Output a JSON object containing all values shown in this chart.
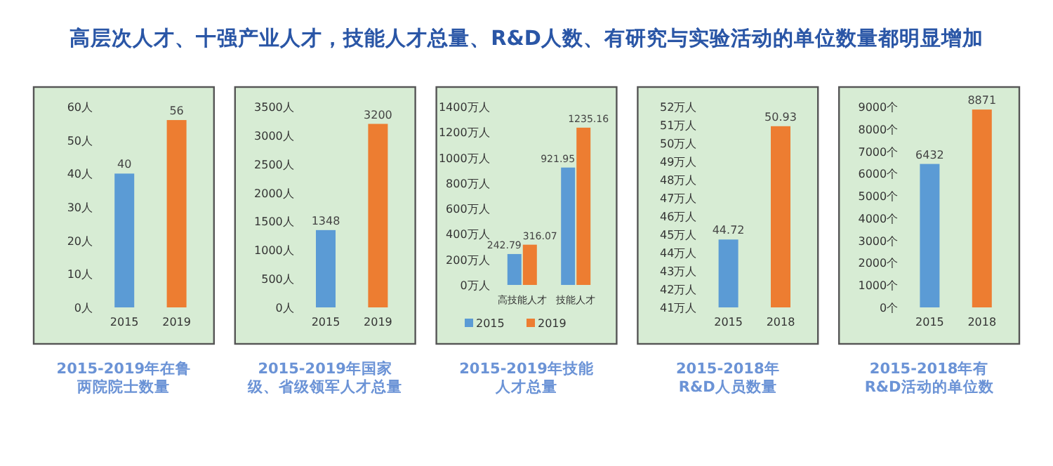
{
  "chart_data": [
    {
      "type": "bar",
      "title": "高层次人才、十强产业人才，技能人才总量、R&D人数、有研究与实验活动的单位数量都明显增加",
      "xlabel": "2015-2019年在鲁两院院士数量",
      "categories": [
        "2015",
        "2019"
      ],
      "values": [
        40,
        56
      ],
      "colors": [
        "#5b9bd5",
        "#ed7d31"
      ],
      "ylim": [
        0,
        60
      ],
      "yticks": [
        {
          "value": 0,
          "label": "0人"
        },
        {
          "value": 10,
          "label": "10人"
        },
        {
          "value": 20,
          "label": "20人"
        },
        {
          "value": 30,
          "label": "30人"
        },
        {
          "value": 40,
          "label": "40人"
        },
        {
          "value": 50,
          "label": "50人"
        },
        {
          "value": 60,
          "label": "60人"
        }
      ],
      "data_labels": true
    },
    {
      "type": "bar",
      "xlabel": "2015-2019年国家级、省级领军人才总量",
      "categories": [
        "2015",
        "2019"
      ],
      "values": [
        1348,
        3200
      ],
      "colors": [
        "#5b9bd5",
        "#ed7d31"
      ],
      "ylim": [
        0,
        3500
      ],
      "yticks": [
        {
          "value": 0,
          "label": "0人"
        },
        {
          "value": 500,
          "label": "500人"
        },
        {
          "value": 1000,
          "label": "1000人"
        },
        {
          "value": 1500,
          "label": "1500人"
        },
        {
          "value": 2000,
          "label": "2000人"
        },
        {
          "value": 2500,
          "label": "2500人"
        },
        {
          "value": 3000,
          "label": "3000人"
        },
        {
          "value": 3500,
          "label": "3500人"
        }
      ],
      "data_labels": true
    },
    {
      "type": "bar",
      "xlabel": "2015-2019年技能人才总量",
      "categories": [
        "高技能人才",
        "技能人才"
      ],
      "series": [
        {
          "name": "2015",
          "color": "#5b9bd5",
          "values": [
            242.79,
            921.95
          ]
        },
        {
          "name": "2019",
          "color": "#ed7d31",
          "values": [
            316.07,
            1235.16
          ]
        }
      ],
      "ylim": [
        0,
        1400
      ],
      "yticks": [
        {
          "value": 0,
          "label": "0万人"
        },
        {
          "value": 200,
          "label": "200万人"
        },
        {
          "value": 400,
          "label": "400万人"
        },
        {
          "value": 600,
          "label": "600万人"
        },
        {
          "value": 800,
          "label": "800万人"
        },
        {
          "value": 1000,
          "label": "1000万人"
        },
        {
          "value": 1200,
          "label": "1200万人"
        },
        {
          "value": 1400,
          "label": "1400万人"
        }
      ],
      "data_labels": true,
      "legend": "bottom"
    },
    {
      "type": "bar",
      "xlabel": "2015-2018年R&D人员数量",
      "categories": [
        "2015",
        "2018"
      ],
      "values": [
        44.72,
        50.93
      ],
      "colors": [
        "#5b9bd5",
        "#ed7d31"
      ],
      "ylim": [
        41,
        52
      ],
      "yticks": [
        {
          "value": 41,
          "label": "41万人"
        },
        {
          "value": 42,
          "label": "42万人"
        },
        {
          "value": 43,
          "label": "43万人"
        },
        {
          "value": 44,
          "label": "44万人"
        },
        {
          "value": 45,
          "label": "45万人"
        },
        {
          "value": 46,
          "label": "46万人"
        },
        {
          "value": 47,
          "label": "47万人"
        },
        {
          "value": 48,
          "label": "48万人"
        },
        {
          "value": 49,
          "label": "49万人"
        },
        {
          "value": 50,
          "label": "50万人"
        },
        {
          "value": 51,
          "label": "51万人"
        },
        {
          "value": 52,
          "label": "52万人"
        }
      ],
      "data_labels": true
    },
    {
      "type": "bar",
      "xlabel": "2015-2018年有R&D活动的单位数",
      "categories": [
        "2015",
        "2018"
      ],
      "values": [
        6432,
        8871
      ],
      "colors": [
        "#5b9bd5",
        "#ed7d31"
      ],
      "ylim": [
        0,
        9000
      ],
      "yticks": [
        {
          "value": 0,
          "label": "0个"
        },
        {
          "value": 1000,
          "label": "1000个"
        },
        {
          "value": 2000,
          "label": "2000个"
        },
        {
          "value": 3000,
          "label": "3000个"
        },
        {
          "value": 4000,
          "label": "4000个"
        },
        {
          "value": 5000,
          "label": "5000个"
        },
        {
          "value": 6000,
          "label": "6000个"
        },
        {
          "value": 7000,
          "label": "7000个"
        },
        {
          "value": 8000,
          "label": "8000个"
        },
        {
          "value": 9000,
          "label": "9000个"
        }
      ],
      "data_labels": true
    }
  ]
}
